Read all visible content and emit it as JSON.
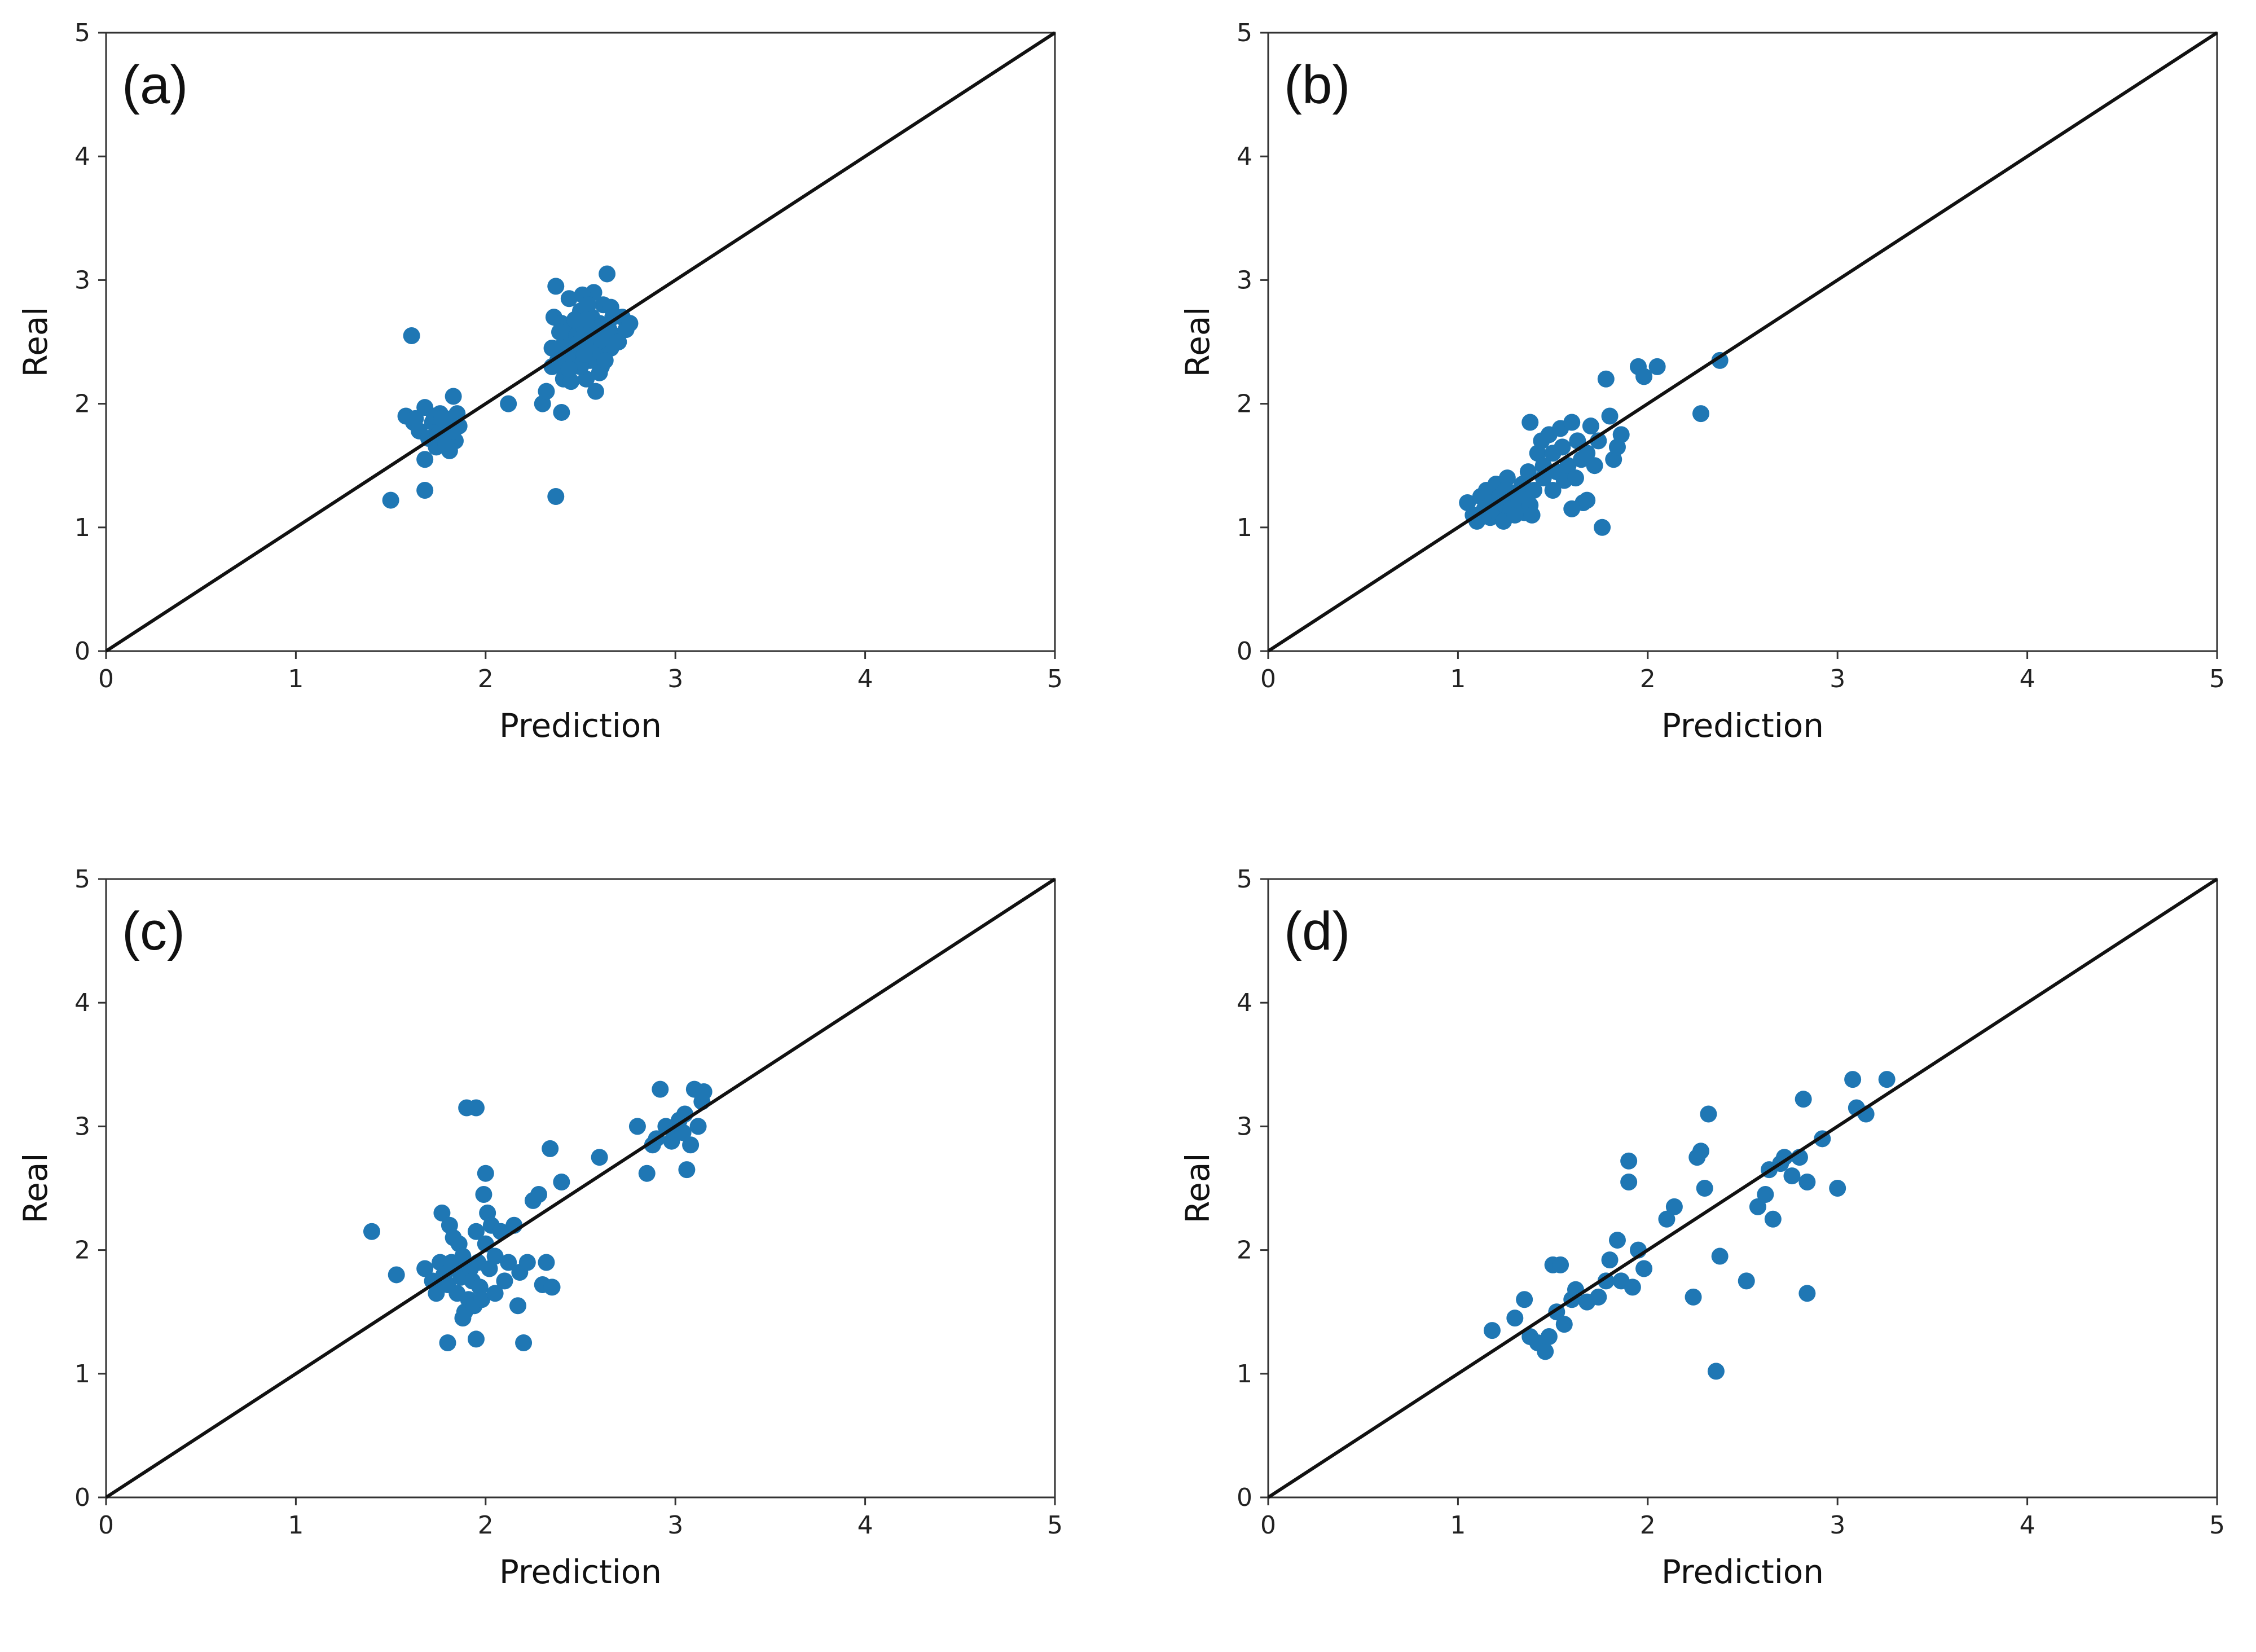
{
  "figure": {
    "panels": [
      "a",
      "b",
      "c",
      "d"
    ]
  },
  "chart_data": [
    {
      "type": "scatter",
      "panel_label": "(a)",
      "xlabel": "Prediction",
      "ylabel": "Real",
      "xlim": [
        0,
        5
      ],
      "ylim": [
        0,
        5
      ],
      "xticks": [
        "0",
        "1",
        "2",
        "3",
        "4",
        "5"
      ],
      "yticks": [
        "0",
        "1",
        "2",
        "3",
        "4",
        "5"
      ],
      "point_color": "#1f77b4",
      "reference_line": {
        "from": [
          0,
          0
        ],
        "to": [
          5,
          5
        ],
        "color": "#111111"
      },
      "points": [
        [
          1.5,
          1.22
        ],
        [
          1.68,
          1.3
        ],
        [
          1.61,
          2.55
        ],
        [
          1.58,
          1.9
        ],
        [
          1.62,
          1.85
        ],
        [
          1.65,
          1.78
        ],
        [
          1.68,
          1.97
        ],
        [
          1.7,
          1.72
        ],
        [
          1.72,
          1.85
        ],
        [
          1.74,
          1.65
        ],
        [
          1.76,
          1.92
        ],
        [
          1.78,
          1.8
        ],
        [
          1.8,
          1.75
        ],
        [
          1.82,
          1.88
        ],
        [
          1.84,
          1.7
        ],
        [
          1.83,
          2.06
        ],
        [
          1.81,
          1.62
        ],
        [
          1.86,
          1.82
        ],
        [
          1.75,
          1.75
        ],
        [
          1.79,
          1.68
        ],
        [
          1.83,
          1.78
        ],
        [
          1.68,
          1.55
        ],
        [
          1.73,
          1.9
        ],
        [
          1.77,
          1.88
        ],
        [
          1.85,
          1.92
        ],
        [
          1.63,
          1.88
        ],
        [
          2.12,
          2.0
        ],
        [
          2.3,
          2.0
        ],
        [
          2.32,
          2.1
        ],
        [
          2.37,
          1.25
        ],
        [
          2.4,
          1.93
        ],
        [
          2.38,
          2.35
        ],
        [
          2.35,
          2.3
        ],
        [
          2.36,
          2.7
        ],
        [
          2.37,
          2.95
        ],
        [
          2.39,
          2.45
        ],
        [
          2.42,
          2.5
        ],
        [
          2.41,
          2.2
        ],
        [
          2.44,
          2.85
        ],
        [
          2.45,
          2.62
        ],
        [
          2.46,
          2.3
        ],
        [
          2.48,
          2.55
        ],
        [
          2.5,
          2.75
        ],
        [
          2.49,
          2.4
        ],
        [
          2.52,
          2.6
        ],
        [
          2.53,
          2.2
        ],
        [
          2.54,
          2.48
        ],
        [
          2.55,
          2.35
        ],
        [
          2.56,
          2.7
        ],
        [
          2.57,
          2.9
        ],
        [
          2.58,
          2.55
        ],
        [
          2.59,
          2.42
        ],
        [
          2.6,
          2.65
        ],
        [
          2.61,
          2.3
        ],
        [
          2.62,
          2.8
        ],
        [
          2.63,
          2.5
        ],
        [
          2.64,
          3.05
        ],
        [
          2.65,
          2.6
        ],
        [
          2.66,
          2.45
        ],
        [
          2.67,
          2.7
        ],
        [
          2.68,
          2.55
        ],
        [
          2.7,
          2.5
        ],
        [
          2.72,
          2.7
        ],
        [
          2.74,
          2.6
        ],
        [
          2.76,
          2.65
        ],
        [
          2.45,
          2.18
        ],
        [
          2.5,
          2.3
        ],
        [
          2.58,
          2.1
        ],
        [
          2.6,
          2.25
        ],
        [
          2.35,
          2.45
        ],
        [
          2.4,
          2.65
        ],
        [
          2.43,
          2.38
        ],
        [
          2.47,
          2.68
        ],
        [
          2.51,
          2.88
        ],
        [
          2.54,
          2.8
        ],
        [
          2.57,
          2.63
        ],
        [
          2.63,
          2.35
        ],
        [
          2.66,
          2.78
        ],
        [
          2.4,
          2.3
        ],
        [
          2.48,
          2.48
        ],
        [
          2.55,
          2.55
        ],
        [
          2.6,
          2.62
        ],
        [
          2.44,
          2.28
        ],
        [
          2.52,
          2.4
        ],
        [
          2.39,
          2.58
        ],
        [
          2.53,
          2.68
        ],
        [
          2.61,
          2.52
        ]
      ]
    },
    {
      "type": "scatter",
      "panel_label": "(b)",
      "xlabel": "Prediction",
      "ylabel": "Real",
      "xlim": [
        0,
        5
      ],
      "ylim": [
        0,
        5
      ],
      "xticks": [
        "0",
        "1",
        "2",
        "3",
        "4",
        "5"
      ],
      "yticks": [
        "0",
        "1",
        "2",
        "3",
        "4",
        "5"
      ],
      "point_color": "#1f77b4",
      "reference_line": {
        "from": [
          0,
          0
        ],
        "to": [
          5,
          5
        ],
        "color": "#111111"
      },
      "points": [
        [
          1.05,
          1.2
        ],
        [
          1.08,
          1.1
        ],
        [
          1.1,
          1.05
        ],
        [
          1.12,
          1.25
        ],
        [
          1.14,
          1.15
        ],
        [
          1.15,
          1.3
        ],
        [
          1.17,
          1.08
        ],
        [
          1.18,
          1.2
        ],
        [
          1.2,
          1.35
        ],
        [
          1.21,
          1.12
        ],
        [
          1.22,
          1.25
        ],
        [
          1.24,
          1.05
        ],
        [
          1.25,
          1.18
        ],
        [
          1.26,
          1.4
        ],
        [
          1.28,
          1.15
        ],
        [
          1.3,
          1.28
        ],
        [
          1.3,
          1.1
        ],
        [
          1.32,
          1.22
        ],
        [
          1.34,
          1.35
        ],
        [
          1.35,
          1.12
        ],
        [
          1.36,
          1.25
        ],
        [
          1.37,
          1.45
        ],
        [
          1.38,
          1.18
        ],
        [
          1.38,
          1.85
        ],
        [
          1.39,
          1.1
        ],
        [
          1.4,
          1.3
        ],
        [
          1.42,
          1.6
        ],
        [
          1.44,
          1.7
        ],
        [
          1.45,
          1.5
        ],
        [
          1.48,
          1.75
        ],
        [
          1.5,
          1.6
        ],
        [
          1.52,
          1.45
        ],
        [
          1.54,
          1.8
        ],
        [
          1.55,
          1.65
        ],
        [
          1.56,
          1.38
        ],
        [
          1.58,
          1.5
        ],
        [
          1.6,
          1.85
        ],
        [
          1.62,
          1.4
        ],
        [
          1.63,
          1.7
        ],
        [
          1.65,
          1.55
        ],
        [
          1.66,
          1.2
        ],
        [
          1.68,
          1.6
        ],
        [
          1.7,
          1.82
        ],
        [
          1.72,
          1.5
        ],
        [
          1.74,
          1.7
        ],
        [
          1.76,
          1.0
        ],
        [
          1.78,
          2.2
        ],
        [
          1.8,
          1.9
        ],
        [
          1.82,
          1.55
        ],
        [
          1.84,
          1.65
        ],
        [
          1.86,
          1.75
        ],
        [
          1.95,
          2.3
        ],
        [
          1.98,
          2.22
        ],
        [
          2.05,
          2.3
        ],
        [
          2.28,
          1.92
        ],
        [
          2.38,
          2.35
        ],
        [
          1.6,
          1.15
        ],
        [
          1.68,
          1.22
        ],
        [
          1.45,
          1.4
        ],
        [
          1.5,
          1.3
        ],
        [
          1.25,
          1.3
        ]
      ]
    },
    {
      "type": "scatter",
      "panel_label": "(c)",
      "xlabel": "Prediction",
      "ylabel": "Real",
      "xlim": [
        0,
        5
      ],
      "ylim": [
        0,
        5
      ],
      "xticks": [
        "0",
        "1",
        "2",
        "3",
        "4",
        "5"
      ],
      "yticks": [
        "0",
        "1",
        "2",
        "3",
        "4",
        "5"
      ],
      "point_color": "#1f77b4",
      "reference_line": {
        "from": [
          0,
          0
        ],
        "to": [
          5,
          5
        ],
        "color": "#111111"
      },
      "points": [
        [
          1.4,
          2.15
        ],
        [
          1.53,
          1.8
        ],
        [
          1.68,
          1.85
        ],
        [
          1.72,
          1.75
        ],
        [
          1.74,
          1.65
        ],
        [
          1.76,
          1.9
        ],
        [
          1.77,
          2.3
        ],
        [
          1.78,
          1.8
        ],
        [
          1.8,
          1.72
        ],
        [
          1.81,
          2.2
        ],
        [
          1.82,
          1.9
        ],
        [
          1.83,
          2.1
        ],
        [
          1.84,
          1.85
        ],
        [
          1.85,
          1.65
        ],
        [
          1.86,
          2.05
        ],
        [
          1.87,
          1.78
        ],
        [
          1.88,
          1.95
        ],
        [
          1.89,
          1.5
        ],
        [
          1.9,
          3.15
        ],
        [
          1.91,
          1.6
        ],
        [
          1.92,
          1.85
        ],
        [
          1.93,
          1.75
        ],
        [
          1.94,
          1.55
        ],
        [
          1.95,
          3.15
        ],
        [
          1.95,
          2.15
        ],
        [
          1.96,
          1.9
        ],
        [
          1.97,
          1.7
        ],
        [
          1.98,
          1.6
        ],
        [
          1.99,
          2.45
        ],
        [
          2.0,
          2.62
        ],
        [
          2.0,
          2.05
        ],
        [
          2.01,
          2.3
        ],
        [
          2.02,
          1.85
        ],
        [
          2.03,
          2.2
        ],
        [
          2.05,
          1.95
        ],
        [
          2.08,
          2.15
        ],
        [
          2.1,
          1.75
        ],
        [
          2.12,
          1.9
        ],
        [
          2.15,
          2.2
        ],
        [
          2.17,
          1.55
        ],
        [
          2.18,
          1.82
        ],
        [
          2.2,
          1.25
        ],
        [
          2.22,
          1.9
        ],
        [
          2.25,
          2.4
        ],
        [
          2.28,
          2.45
        ],
        [
          2.3,
          1.72
        ],
        [
          2.32,
          1.9
        ],
        [
          2.34,
          2.82
        ],
        [
          2.35,
          1.7
        ],
        [
          2.4,
          2.55
        ],
        [
          2.6,
          2.75
        ],
        [
          1.8,
          1.25
        ],
        [
          1.95,
          1.28
        ],
        [
          1.88,
          1.45
        ],
        [
          2.05,
          1.65
        ],
        [
          2.8,
          3.0
        ],
        [
          2.85,
          2.62
        ],
        [
          2.9,
          2.9
        ],
        [
          2.92,
          3.3
        ],
        [
          2.95,
          3.0
        ],
        [
          2.98,
          2.88
        ],
        [
          3.0,
          2.95
        ],
        [
          3.02,
          3.05
        ],
        [
          3.05,
          3.1
        ],
        [
          3.06,
          2.65
        ],
        [
          3.08,
          2.85
        ],
        [
          3.1,
          3.3
        ],
        [
          3.12,
          3.0
        ],
        [
          3.14,
          3.2
        ],
        [
          3.15,
          3.28
        ],
        [
          2.88,
          2.85
        ],
        [
          3.04,
          2.95
        ]
      ]
    },
    {
      "type": "scatter",
      "panel_label": "(d)",
      "xlabel": "Prediction",
      "ylabel": "Real",
      "xlim": [
        0,
        5
      ],
      "ylim": [
        0,
        5
      ],
      "xticks": [
        "0",
        "1",
        "2",
        "3",
        "4",
        "5"
      ],
      "yticks": [
        "0",
        "1",
        "2",
        "3",
        "4",
        "5"
      ],
      "point_color": "#1f77b4",
      "reference_line": {
        "from": [
          0,
          0
        ],
        "to": [
          5,
          5
        ],
        "color": "#111111"
      },
      "points": [
        [
          1.18,
          1.35
        ],
        [
          1.3,
          1.45
        ],
        [
          1.35,
          1.6
        ],
        [
          1.38,
          1.3
        ],
        [
          1.42,
          1.25
        ],
        [
          1.46,
          1.18
        ],
        [
          1.48,
          1.3
        ],
        [
          1.5,
          1.88
        ],
        [
          1.52,
          1.5
        ],
        [
          1.54,
          1.88
        ],
        [
          1.56,
          1.4
        ],
        [
          1.6,
          1.6
        ],
        [
          1.62,
          1.68
        ],
        [
          1.68,
          1.58
        ],
        [
          1.74,
          1.62
        ],
        [
          1.78,
          1.75
        ],
        [
          1.8,
          1.92
        ],
        [
          1.84,
          2.08
        ],
        [
          1.86,
          1.75
        ],
        [
          1.9,
          2.72
        ],
        [
          1.9,
          2.55
        ],
        [
          1.92,
          1.7
        ],
        [
          1.95,
          2.0
        ],
        [
          1.98,
          1.85
        ],
        [
          2.1,
          2.25
        ],
        [
          2.14,
          2.35
        ],
        [
          2.24,
          1.62
        ],
        [
          2.26,
          2.75
        ],
        [
          2.28,
          2.8
        ],
        [
          2.3,
          2.5
        ],
        [
          2.32,
          3.1
        ],
        [
          2.36,
          1.02
        ],
        [
          2.38,
          1.95
        ],
        [
          2.52,
          1.75
        ],
        [
          2.58,
          2.35
        ],
        [
          2.62,
          2.45
        ],
        [
          2.64,
          2.65
        ],
        [
          2.66,
          2.25
        ],
        [
          2.7,
          2.7
        ],
        [
          2.72,
          2.75
        ],
        [
          2.76,
          2.6
        ],
        [
          2.8,
          2.75
        ],
        [
          2.82,
          3.22
        ],
        [
          2.84,
          2.55
        ],
        [
          2.84,
          1.65
        ],
        [
          2.92,
          2.9
        ],
        [
          3.0,
          2.5
        ],
        [
          3.08,
          3.38
        ],
        [
          3.1,
          3.15
        ],
        [
          3.15,
          3.1
        ],
        [
          3.26,
          3.38
        ]
      ]
    }
  ]
}
